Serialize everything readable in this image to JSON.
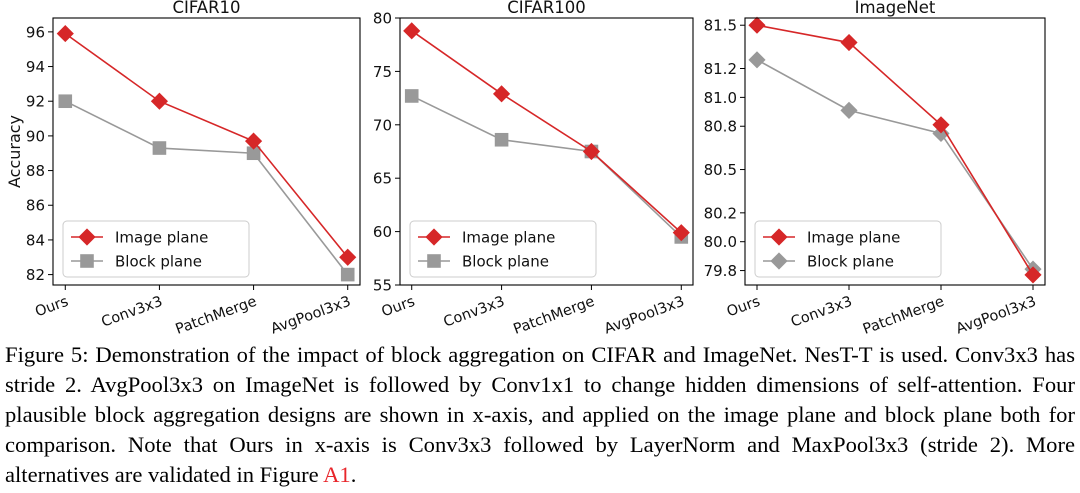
{
  "chart_data": [
    {
      "type": "line",
      "title": "CIFAR10",
      "xlabel": "",
      "ylabel": "Accuracy",
      "categories": [
        "Ours",
        "Conv3x3",
        "PatchMerge",
        "AvgPool3x3"
      ],
      "ylim": [
        81.4,
        96.8
      ],
      "yticks": [
        82,
        84,
        86,
        88,
        90,
        92,
        94,
        96
      ],
      "series": [
        {
          "name": "Image plane",
          "color": "#d62728",
          "marker": "diamond",
          "values": [
            95.9,
            92.0,
            89.7,
            83.0
          ]
        },
        {
          "name": "Block plane",
          "color": "#999999",
          "marker": "square",
          "values": [
            92.0,
            89.3,
            89.0,
            82.0
          ]
        }
      ],
      "legend": "lower-left"
    },
    {
      "type": "line",
      "title": "CIFAR100",
      "xlabel": "",
      "ylabel": "",
      "categories": [
        "Ours",
        "Conv3x3",
        "PatchMerge",
        "AvgPool3x3"
      ],
      "ylim": [
        55,
        80
      ],
      "yticks": [
        55,
        60,
        65,
        70,
        75,
        80
      ],
      "series": [
        {
          "name": "Image plane",
          "color": "#d62728",
          "marker": "diamond",
          "values": [
            78.8,
            72.9,
            67.5,
            59.9
          ]
        },
        {
          "name": "Block plane",
          "color": "#999999",
          "marker": "square",
          "values": [
            72.7,
            68.6,
            67.5,
            59.5
          ]
        }
      ],
      "legend": "lower-left"
    },
    {
      "type": "line",
      "title": "ImageNet",
      "xlabel": "",
      "ylabel": "",
      "categories": [
        "Ours",
        "Conv3x3",
        "PatchMerge",
        "AvgPool3x3"
      ],
      "ylim": [
        79.7,
        81.55
      ],
      "yticks": [
        79.8,
        80.0,
        80.2,
        80.5,
        80.8,
        81.0,
        81.2,
        81.5
      ],
      "ytick_labels": [
        "79.8",
        "80.0",
        "80.2",
        "80.5",
        "80.8",
        "81.0",
        "81.2",
        "81.5"
      ],
      "series": [
        {
          "name": "Image plane",
          "color": "#d62728",
          "marker": "diamond",
          "values": [
            81.5,
            81.38,
            80.81,
            79.77
          ]
        },
        {
          "name": "Block plane",
          "color": "#999999",
          "marker": "diamond",
          "values": [
            81.26,
            80.91,
            80.75,
            79.81
          ]
        }
      ],
      "legend": "lower-left"
    }
  ],
  "caption": {
    "text": "Figure 5: Demonstration of the impact of block aggregation on CIFAR and ImageNet. NesT-T is used. Conv3x3 has stride 2. AvgPool3x3 on ImageNet is followed by Conv1x1 to change hidden dimensions of self-attention. Four plausible block aggregation designs are shown in x-axis, and applied on the image plane and block plane both for comparison. Note that Ours in x-axis is Conv3x3 followed by LayerNorm and MaxPool3x3 (stride 2). More alternatives are validated in Figure ",
    "ref": "A1",
    "end": "."
  }
}
